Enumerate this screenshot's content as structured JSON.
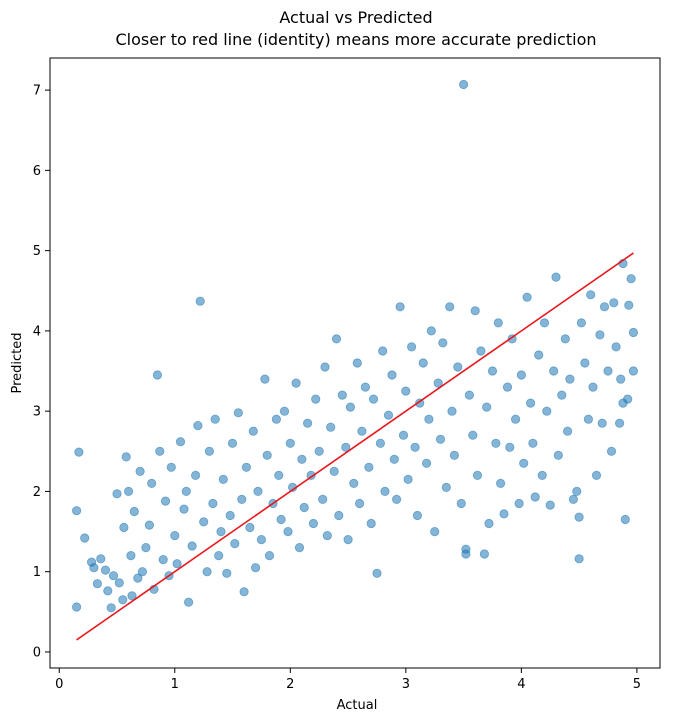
{
  "chart_data": {
    "type": "scatter",
    "title": "Actual vs Predicted",
    "subtitle": "Closer to red line (identity) means more accurate prediction",
    "xlabel": "Actual",
    "ylabel": "Predicted",
    "xlim": [
      -0.08,
      5.2
    ],
    "ylim": [
      -0.2,
      7.4
    ],
    "x_ticks": [
      0,
      1,
      2,
      3,
      4,
      5
    ],
    "y_ticks": [
      0,
      1,
      2,
      3,
      4,
      5,
      6,
      7
    ],
    "grid": false,
    "legend": "none",
    "point_color": "#1f77b4",
    "point_alpha": 0.55,
    "reference_line": {
      "label": "identity",
      "color": "#e8171c",
      "x": [
        0.15,
        4.97
      ],
      "y": [
        0.15,
        4.97
      ]
    },
    "points": [
      [
        0.15,
        0.56
      ],
      [
        0.15,
        1.76
      ],
      [
        0.17,
        2.49
      ],
      [
        0.22,
        1.42
      ],
      [
        0.28,
        1.12
      ],
      [
        0.3,
        1.05
      ],
      [
        0.33,
        0.85
      ],
      [
        0.36,
        1.16
      ],
      [
        0.4,
        1.02
      ],
      [
        0.42,
        0.76
      ],
      [
        0.45,
        0.55
      ],
      [
        0.47,
        0.95
      ],
      [
        0.5,
        1.97
      ],
      [
        0.52,
        0.86
      ],
      [
        0.55,
        0.65
      ],
      [
        0.56,
        1.55
      ],
      [
        0.58,
        2.43
      ],
      [
        0.6,
        2.0
      ],
      [
        0.62,
        1.2
      ],
      [
        0.63,
        0.7
      ],
      [
        0.65,
        1.75
      ],
      [
        0.68,
        0.92
      ],
      [
        0.7,
        2.25
      ],
      [
        0.72,
        1.0
      ],
      [
        0.75,
        1.3
      ],
      [
        0.78,
        1.58
      ],
      [
        0.8,
        2.1
      ],
      [
        0.82,
        0.78
      ],
      [
        0.85,
        3.45
      ],
      [
        0.87,
        2.5
      ],
      [
        0.9,
        1.15
      ],
      [
        0.92,
        1.88
      ],
      [
        0.95,
        0.95
      ],
      [
        0.97,
        2.3
      ],
      [
        1.0,
        1.45
      ],
      [
        1.02,
        1.1
      ],
      [
        1.05,
        2.62
      ],
      [
        1.08,
        1.78
      ],
      [
        1.1,
        2.0
      ],
      [
        1.12,
        0.62
      ],
      [
        1.15,
        1.32
      ],
      [
        1.18,
        2.2
      ],
      [
        1.2,
        2.82
      ],
      [
        1.22,
        4.37
      ],
      [
        1.25,
        1.62
      ],
      [
        1.28,
        1.0
      ],
      [
        1.3,
        2.5
      ],
      [
        1.33,
        1.85
      ],
      [
        1.35,
        2.9
      ],
      [
        1.38,
        1.2
      ],
      [
        1.4,
        1.5
      ],
      [
        1.42,
        2.15
      ],
      [
        1.45,
        0.98
      ],
      [
        1.48,
        1.7
      ],
      [
        1.5,
        2.6
      ],
      [
        1.52,
        1.35
      ],
      [
        1.55,
        2.98
      ],
      [
        1.58,
        1.9
      ],
      [
        1.6,
        0.75
      ],
      [
        1.62,
        2.3
      ],
      [
        1.65,
        1.55
      ],
      [
        1.68,
        2.75
      ],
      [
        1.7,
        1.05
      ],
      [
        1.72,
        2.0
      ],
      [
        1.75,
        1.4
      ],
      [
        1.78,
        3.4
      ],
      [
        1.8,
        2.45
      ],
      [
        1.82,
        1.2
      ],
      [
        1.85,
        1.85
      ],
      [
        1.88,
        2.9
      ],
      [
        1.9,
        2.2
      ],
      [
        1.92,
        1.65
      ],
      [
        1.95,
        3.0
      ],
      [
        1.98,
        1.5
      ],
      [
        2.0,
        2.6
      ],
      [
        2.02,
        2.05
      ],
      [
        2.05,
        3.35
      ],
      [
        2.08,
        1.3
      ],
      [
        2.1,
        2.4
      ],
      [
        2.12,
        1.8
      ],
      [
        2.15,
        2.85
      ],
      [
        2.18,
        2.2
      ],
      [
        2.2,
        1.6
      ],
      [
        2.22,
        3.15
      ],
      [
        2.25,
        2.5
      ],
      [
        2.28,
        1.9
      ],
      [
        2.3,
        3.55
      ],
      [
        2.32,
        1.45
      ],
      [
        2.35,
        2.8
      ],
      [
        2.38,
        2.25
      ],
      [
        2.4,
        3.9
      ],
      [
        2.42,
        1.7
      ],
      [
        2.45,
        3.2
      ],
      [
        2.48,
        2.55
      ],
      [
        2.5,
        1.4
      ],
      [
        2.52,
        3.05
      ],
      [
        2.55,
        2.1
      ],
      [
        2.58,
        3.6
      ],
      [
        2.6,
        1.85
      ],
      [
        2.62,
        2.75
      ],
      [
        2.65,
        3.3
      ],
      [
        2.68,
        2.3
      ],
      [
        2.7,
        1.6
      ],
      [
        2.72,
        3.15
      ],
      [
        2.75,
        0.98
      ],
      [
        2.78,
        2.6
      ],
      [
        2.8,
        3.75
      ],
      [
        2.82,
        2.0
      ],
      [
        2.85,
        2.95
      ],
      [
        2.88,
        3.45
      ],
      [
        2.9,
        2.4
      ],
      [
        2.92,
        1.9
      ],
      [
        2.95,
        4.3
      ],
      [
        2.98,
        2.7
      ],
      [
        3.0,
        3.25
      ],
      [
        3.02,
        2.15
      ],
      [
        3.05,
        3.8
      ],
      [
        3.08,
        2.55
      ],
      [
        3.1,
        1.7
      ],
      [
        3.12,
        3.1
      ],
      [
        3.15,
        3.6
      ],
      [
        3.18,
        2.35
      ],
      [
        3.2,
        2.9
      ],
      [
        3.22,
        4.0
      ],
      [
        3.25,
        1.5
      ],
      [
        3.28,
        3.35
      ],
      [
        3.3,
        2.65
      ],
      [
        3.32,
        3.85
      ],
      [
        3.35,
        2.05
      ],
      [
        3.38,
        4.3
      ],
      [
        3.4,
        3.0
      ],
      [
        3.42,
        2.45
      ],
      [
        3.45,
        3.55
      ],
      [
        3.48,
        1.85
      ],
      [
        3.5,
        7.07
      ],
      [
        3.52,
        1.28
      ],
      [
        3.52,
        1.22
      ],
      [
        3.55,
        3.2
      ],
      [
        3.58,
        2.7
      ],
      [
        3.6,
        4.25
      ],
      [
        3.62,
        2.2
      ],
      [
        3.65,
        3.75
      ],
      [
        3.68,
        1.22
      ],
      [
        3.7,
        3.05
      ],
      [
        3.72,
        1.6
      ],
      [
        3.75,
        3.5
      ],
      [
        3.78,
        2.6
      ],
      [
        3.8,
        4.1
      ],
      [
        3.82,
        2.1
      ],
      [
        3.85,
        1.72
      ],
      [
        3.88,
        3.3
      ],
      [
        3.9,
        2.55
      ],
      [
        3.92,
        3.9
      ],
      [
        3.95,
        2.9
      ],
      [
        3.98,
        1.85
      ],
      [
        4.0,
        3.45
      ],
      [
        4.02,
        2.35
      ],
      [
        4.05,
        4.42
      ],
      [
        4.08,
        3.1
      ],
      [
        4.1,
        2.6
      ],
      [
        4.12,
        1.93
      ],
      [
        4.15,
        3.7
      ],
      [
        4.18,
        2.2
      ],
      [
        4.2,
        4.1
      ],
      [
        4.22,
        3.0
      ],
      [
        4.25,
        1.83
      ],
      [
        4.28,
        3.5
      ],
      [
        4.3,
        4.67
      ],
      [
        4.32,
        2.45
      ],
      [
        4.35,
        3.2
      ],
      [
        4.38,
        3.9
      ],
      [
        4.4,
        2.75
      ],
      [
        4.42,
        3.4
      ],
      [
        4.45,
        1.9
      ],
      [
        4.48,
        2.0
      ],
      [
        4.5,
        1.68
      ],
      [
        4.5,
        1.16
      ],
      [
        4.52,
        4.1
      ],
      [
        4.55,
        3.6
      ],
      [
        4.58,
        2.9
      ],
      [
        4.6,
        4.45
      ],
      [
        4.62,
        3.3
      ],
      [
        4.65,
        2.2
      ],
      [
        4.68,
        3.95
      ],
      [
        4.7,
        2.85
      ],
      [
        4.72,
        4.3
      ],
      [
        4.75,
        3.5
      ],
      [
        4.78,
        2.5
      ],
      [
        4.8,
        4.35
      ],
      [
        4.82,
        3.8
      ],
      [
        4.85,
        2.85
      ],
      [
        4.88,
        4.84
      ],
      [
        4.9,
        1.65
      ],
      [
        4.92,
        3.15
      ],
      [
        4.95,
        4.65
      ],
      [
        4.97,
        3.5
      ],
      [
        4.97,
        3.98
      ],
      [
        4.93,
        4.32
      ],
      [
        4.88,
        3.1
      ],
      [
        4.86,
        3.4
      ]
    ]
  }
}
